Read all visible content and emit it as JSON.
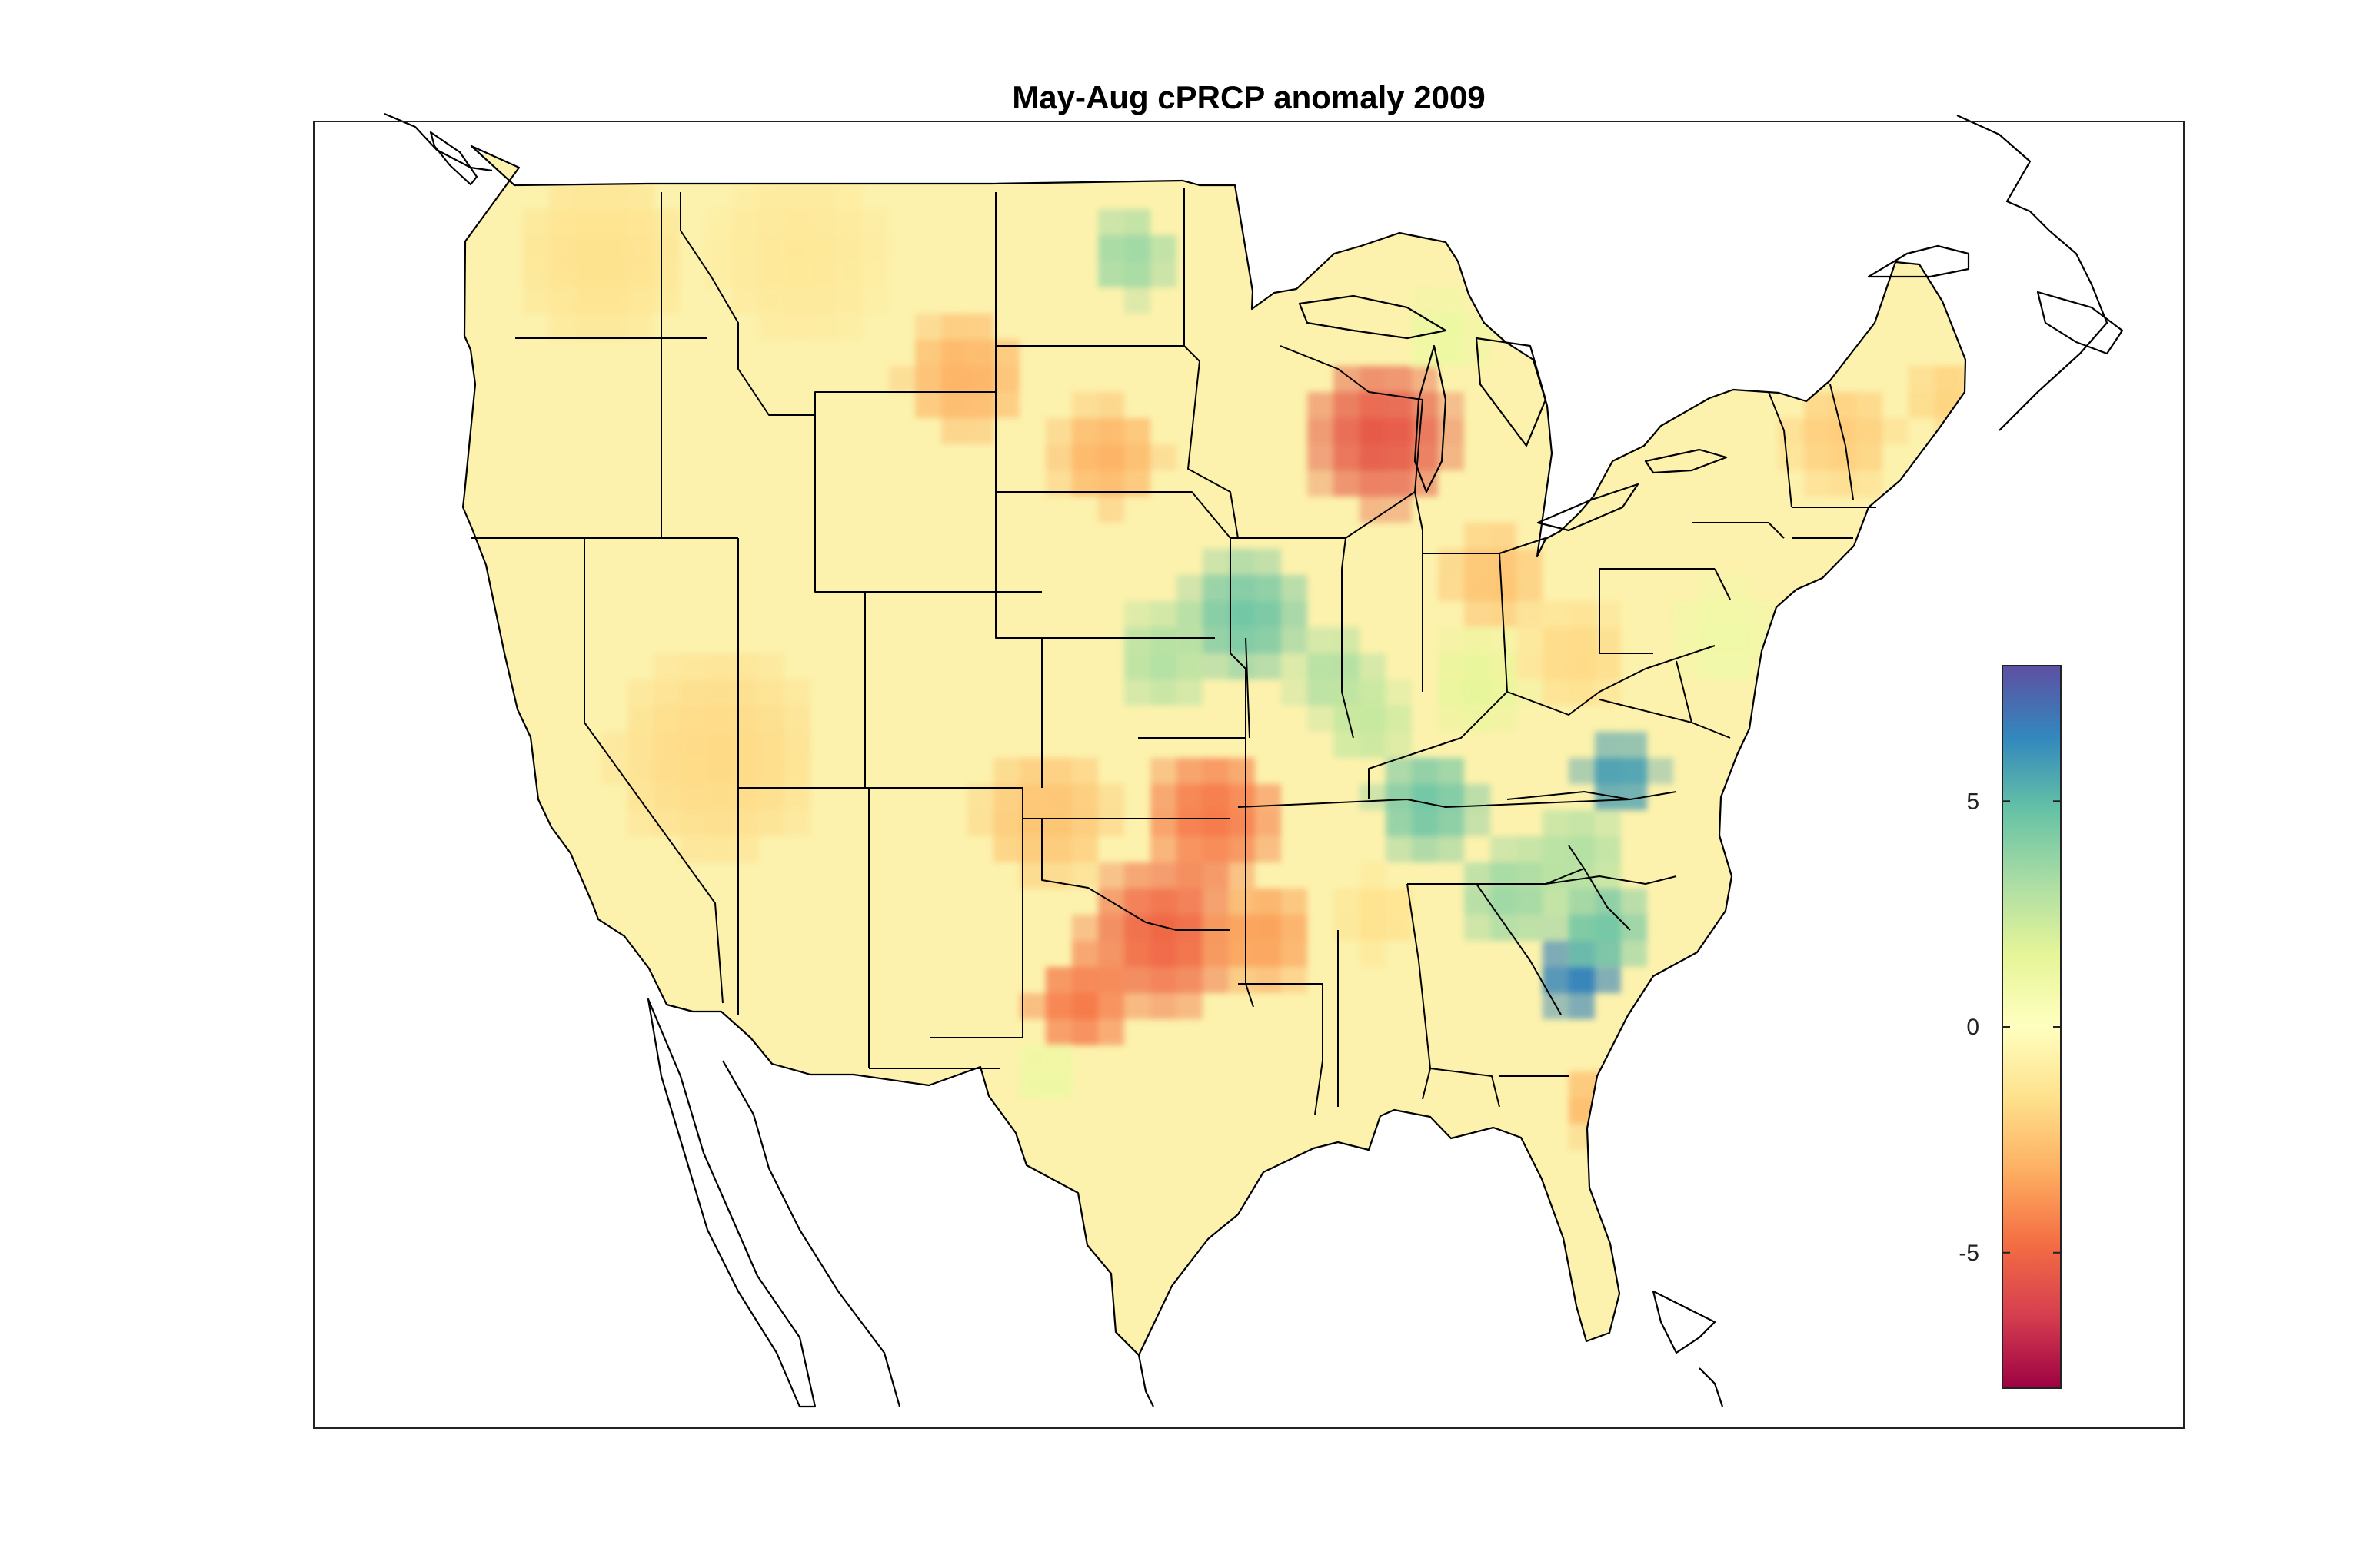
{
  "title": "May-Aug cPRCP anomaly 2009",
  "colorbar": {
    "colormap": "spectral",
    "range": [
      -8,
      8
    ],
    "ticks": [
      {
        "value": 5,
        "label": "5"
      },
      {
        "value": 0,
        "label": "0"
      },
      {
        "value": -5,
        "label": "-5"
      }
    ],
    "stops": [
      "#9e0142",
      "#d53e4f",
      "#f46d43",
      "#fdae61",
      "#fee08b",
      "#ffffbf",
      "#e6f598",
      "#abdda4",
      "#66c2a5",
      "#3288bd",
      "#5e4fa2"
    ]
  },
  "map": {
    "region": "Contiguous United States",
    "land_fill": "#ffffff",
    "boundary_color": "#000000",
    "anomaly_blobs": [
      {
        "lon": -88.4,
        "lat": 43.0,
        "value": -5.5,
        "radius_deg": 2.2
      },
      {
        "lon": -96.7,
        "lat": 42.5,
        "value": -3.0,
        "radius_deg": 1.6
      },
      {
        "lon": -101.0,
        "lat": 44.5,
        "value": -3.0,
        "radius_deg": 1.8
      },
      {
        "lon": -93.5,
        "lat": 33.5,
        "value": -4.5,
        "radius_deg": 2.0
      },
      {
        "lon": -95.0,
        "lat": 30.5,
        "value": -5.0,
        "radius_deg": 2.3
      },
      {
        "lon": -97.5,
        "lat": 28.8,
        "value": -4.5,
        "radius_deg": 1.5
      },
      {
        "lon": -92.0,
        "lat": 30.5,
        "value": -3.5,
        "radius_deg": 1.6
      },
      {
        "lon": -98.5,
        "lat": 33.5,
        "value": -2.5,
        "radius_deg": 2.0
      },
      {
        "lon": -108.5,
        "lat": 35.0,
        "value": -1.8,
        "radius_deg": 3.0
      },
      {
        "lon": -85.0,
        "lat": 39.5,
        "value": -2.5,
        "radius_deg": 1.5
      },
      {
        "lon": -82.5,
        "lat": 37.5,
        "value": -1.8,
        "radius_deg": 1.5
      },
      {
        "lon": -74.5,
        "lat": 43.0,
        "value": -2.2,
        "radius_deg": 1.6
      },
      {
        "lon": -71.2,
        "lat": 44.0,
        "value": -2.0,
        "radius_deg": 1.2
      },
      {
        "lon": -112.0,
        "lat": 47.5,
        "value": -1.5,
        "radius_deg": 2.5
      },
      {
        "lon": -106.0,
        "lat": 47.5,
        "value": -1.2,
        "radius_deg": 2.5
      },
      {
        "lon": -82.0,
        "lat": 26.3,
        "value": -2.8,
        "radius_deg": 1.0
      },
      {
        "lon": -88.5,
        "lat": 31.0,
        "value": -1.5,
        "radius_deg": 1.2
      },
      {
        "lon": -92.5,
        "lat": 38.5,
        "value": 4.5,
        "radius_deg": 1.8
      },
      {
        "lon": -95.0,
        "lat": 37.5,
        "value": 3.0,
        "radius_deg": 1.5
      },
      {
        "lon": -89.8,
        "lat": 37.0,
        "value": 3.0,
        "radius_deg": 1.3
      },
      {
        "lon": -96.0,
        "lat": 47.5,
        "value": 3.5,
        "radius_deg": 1.3
      },
      {
        "lon": -87.0,
        "lat": 33.8,
        "value": 4.5,
        "radius_deg": 1.6
      },
      {
        "lon": -84.5,
        "lat": 31.5,
        "value": 3.5,
        "radius_deg": 1.5
      },
      {
        "lon": -81.2,
        "lat": 34.5,
        "value": 5.8,
        "radius_deg": 1.2
      },
      {
        "lon": -82.5,
        "lat": 29.5,
        "value": 6.5,
        "radius_deg": 1.2
      },
      {
        "lon": -81.8,
        "lat": 30.7,
        "value": 4.5,
        "radius_deg": 1.4
      },
      {
        "lon": -82.5,
        "lat": 32.5,
        "value": 3.0,
        "radius_deg": 1.5
      },
      {
        "lon": -88.8,
        "lat": 35.8,
        "value": 2.5,
        "radius_deg": 1.3
      },
      {
        "lon": -85.5,
        "lat": 36.8,
        "value": 1.5,
        "radius_deg": 1.5
      },
      {
        "lon": -84.0,
        "lat": 46.5,
        "value": 1.5,
        "radius_deg": 1.2
      },
      {
        "lon": -86.5,
        "lat": 45.5,
        "value": 1.2,
        "radius_deg": 1.2
      },
      {
        "lon": -98.5,
        "lat": 27.0,
        "value": 1.2,
        "radius_deg": 1.0
      },
      {
        "lon": -69.5,
        "lat": 45.8,
        "value": 1.0,
        "radius_deg": 1.2
      },
      {
        "lon": -78.0,
        "lat": 38.0,
        "value": 1.0,
        "radius_deg": 1.5
      }
    ]
  }
}
